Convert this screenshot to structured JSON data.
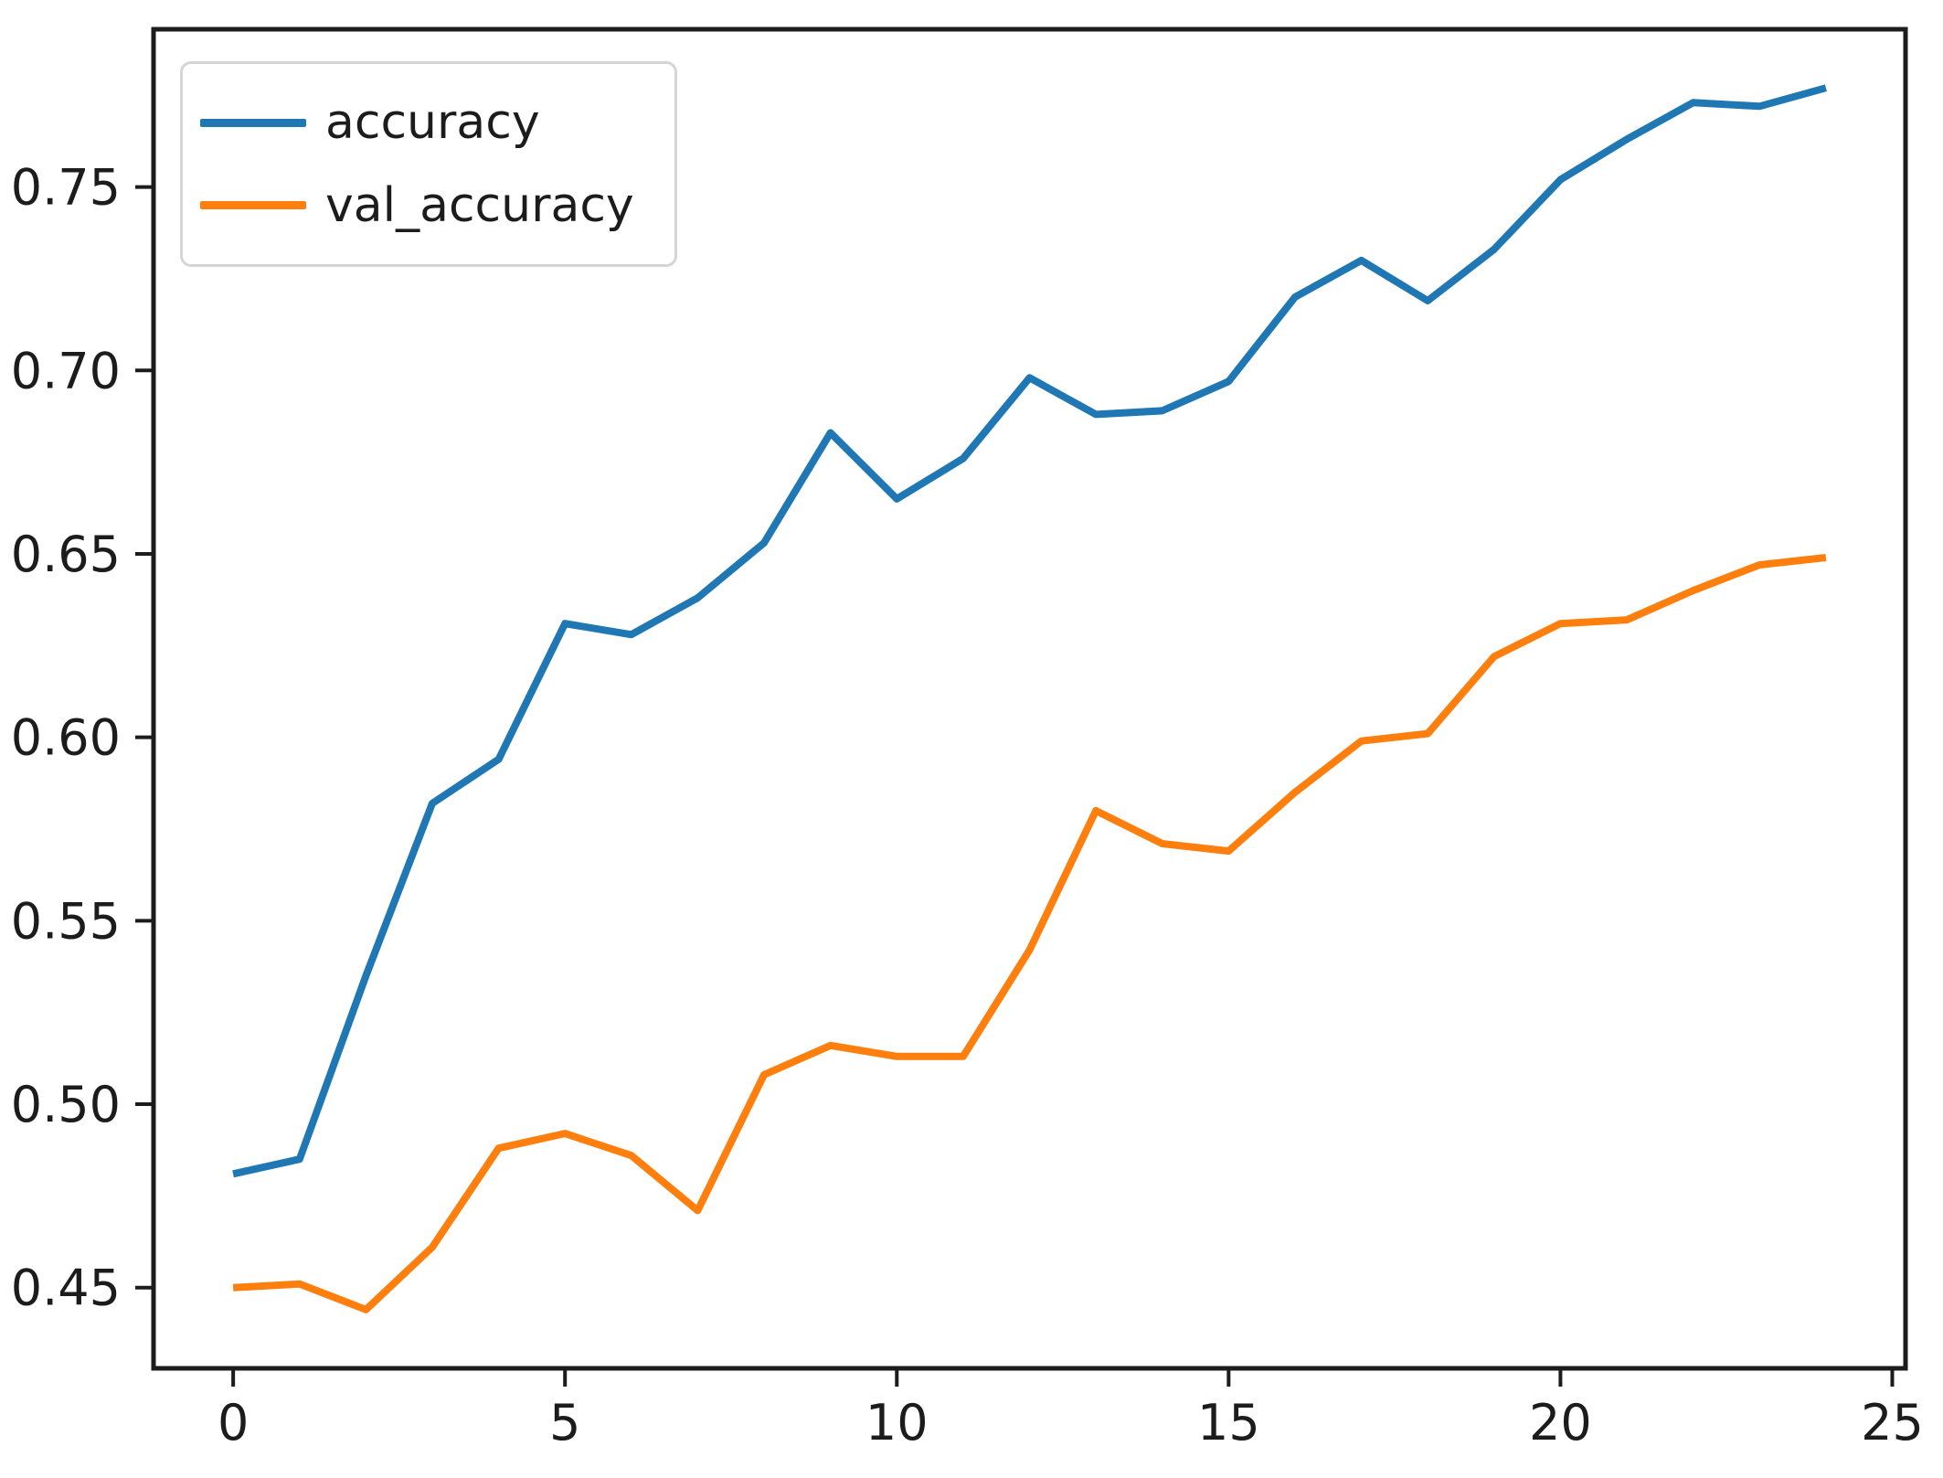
{
  "figure": {
    "background": "#ffffff",
    "axis_color": "#1c1c1c"
  },
  "legend": {
    "position": "upper left",
    "items": [
      {
        "label": "accuracy",
        "color": "#1f77b4"
      },
      {
        "label": "val_accuracy",
        "color": "#ff7f0e"
      }
    ]
  },
  "chart_data": {
    "type": "line",
    "title": "",
    "xlabel": "",
    "ylabel": "",
    "grid": false,
    "legend_position": "upper left",
    "x": [
      0,
      1,
      2,
      3,
      4,
      5,
      6,
      7,
      8,
      9,
      10,
      11,
      12,
      13,
      14,
      15,
      16,
      17,
      18,
      19,
      20,
      21,
      22,
      23,
      24
    ],
    "series": [
      {
        "name": "accuracy",
        "color": "#1f77b4",
        "values": [
          0.481,
          0.485,
          0.535,
          0.582,
          0.594,
          0.631,
          0.628,
          0.638,
          0.653,
          0.683,
          0.665,
          0.676,
          0.698,
          0.688,
          0.689,
          0.697,
          0.72,
          0.73,
          0.719,
          0.733,
          0.752,
          0.763,
          0.773,
          0.772,
          0.777
        ]
      },
      {
        "name": "val_accuracy",
        "color": "#ff7f0e",
        "values": [
          0.45,
          0.451,
          0.444,
          0.461,
          0.488,
          0.492,
          0.486,
          0.471,
          0.508,
          0.516,
          0.513,
          0.513,
          0.542,
          0.58,
          0.571,
          0.569,
          0.585,
          0.599,
          0.601,
          0.622,
          0.631,
          0.632,
          0.64,
          0.647,
          0.649
        ]
      }
    ],
    "x_ticks": [
      0,
      5,
      10,
      15,
      20,
      25
    ],
    "y_ticks": [
      0.45,
      0.5,
      0.55,
      0.6,
      0.65,
      0.7,
      0.75
    ],
    "xlim": [
      -1.2,
      25.2
    ],
    "ylim": [
      0.428,
      0.793
    ]
  }
}
